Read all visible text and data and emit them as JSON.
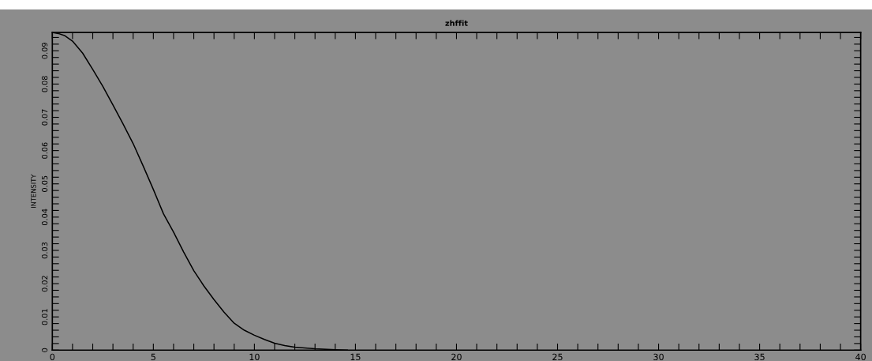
{
  "chart_data": {
    "type": "line",
    "title": "zhffit",
    "ylabel": "INTENSITY",
    "x": [
      0,
      0.3,
      0.6,
      1,
      1.5,
      2,
      2.5,
      3,
      3.5,
      4,
      4.5,
      5,
      5.5,
      6,
      6.5,
      7,
      7.5,
      8,
      8.5,
      9,
      9.5,
      10,
      10.5,
      11,
      11.5,
      12,
      13,
      14,
      14.6
    ],
    "series": [
      {
        "color": "#000000",
        "values": [
          0.0955,
          0.0952,
          0.0946,
          0.0929,
          0.0893,
          0.0844,
          0.0793,
          0.0737,
          0.068,
          0.0621,
          0.0553,
          0.0483,
          0.041,
          0.0355,
          0.0295,
          0.0239,
          0.0193,
          0.0152,
          0.0114,
          0.0081,
          0.006,
          0.0045,
          0.0032,
          0.0021,
          0.0014,
          0.0009,
          0.0004,
          0.0001,
          0
        ]
      }
    ],
    "xlim": [
      0,
      40
    ],
    "ylim": [
      0,
      0.0955
    ],
    "xticks": [
      0,
      {
        "value": 1,
        "label": null
      },
      {
        "value": 2,
        "label": null
      },
      {
        "value": 3,
        "label": null
      },
      {
        "value": 4,
        "label": null
      },
      5,
      {
        "value": 6,
        "label": null
      },
      {
        "value": 7,
        "label": null
      },
      {
        "value": 8,
        "label": null
      },
      {
        "value": 9,
        "label": null
      },
      10,
      {
        "value": 11,
        "label": null
      },
      {
        "value": 12,
        "label": null
      },
      {
        "value": 13,
        "label": null
      },
      {
        "value": 14,
        "label": null
      },
      15,
      {
        "value": 16,
        "label": null
      },
      {
        "value": 17,
        "label": null
      },
      {
        "value": 18,
        "label": null
      },
      {
        "value": 19,
        "label": null
      },
      20,
      {
        "value": 21,
        "label": null
      },
      {
        "value": 22,
        "label": null
      },
      {
        "value": 23,
        "label": null
      },
      {
        "value": 24,
        "label": null
      },
      25,
      {
        "value": 26,
        "label": null
      },
      {
        "value": 27,
        "label": null
      },
      {
        "value": 28,
        "label": null
      },
      {
        "value": 29,
        "label": null
      },
      30,
      {
        "value": 31,
        "label": null
      },
      {
        "value": 32,
        "label": null
      },
      {
        "value": 33,
        "label": null
      },
      {
        "value": 34,
        "label": null
      },
      35,
      {
        "value": 36,
        "label": null
      },
      {
        "value": 37,
        "label": null
      },
      {
        "value": 38,
        "label": null
      },
      {
        "value": 39,
        "label": null
      },
      40
    ],
    "yticks": [
      0,
      {
        "value": 0.002,
        "label": null
      },
      {
        "value": 0.004,
        "label": null
      },
      {
        "value": 0.006,
        "label": null
      },
      {
        "value": 0.008,
        "label": null
      },
      0.01,
      {
        "value": 0.012,
        "label": null
      },
      {
        "value": 0.014,
        "label": null
      },
      {
        "value": 0.016,
        "label": null
      },
      {
        "value": 0.018,
        "label": null
      },
      0.02,
      {
        "value": 0.022,
        "label": null
      },
      {
        "value": 0.024,
        "label": null
      },
      {
        "value": 0.026,
        "label": null
      },
      {
        "value": 0.028,
        "label": null
      },
      0.03,
      {
        "value": 0.032,
        "label": null
      },
      {
        "value": 0.034,
        "label": null
      },
      {
        "value": 0.036,
        "label": null
      },
      {
        "value": 0.038,
        "label": null
      },
      0.04,
      {
        "value": 0.042,
        "label": null
      },
      {
        "value": 0.044,
        "label": null
      },
      {
        "value": 0.046,
        "label": null
      },
      {
        "value": 0.048,
        "label": null
      },
      0.05,
      {
        "value": 0.052,
        "label": null
      },
      {
        "value": 0.054,
        "label": null
      },
      {
        "value": 0.056,
        "label": null
      },
      {
        "value": 0.058,
        "label": null
      },
      0.06,
      {
        "value": 0.062,
        "label": null
      },
      {
        "value": 0.064,
        "label": null
      },
      {
        "value": 0.066,
        "label": null
      },
      {
        "value": 0.068,
        "label": null
      },
      0.07,
      {
        "value": 0.072,
        "label": null
      },
      {
        "value": 0.074,
        "label": null
      },
      {
        "value": 0.076,
        "label": null
      },
      {
        "value": 0.078,
        "label": null
      },
      0.08,
      {
        "value": 0.082,
        "label": null
      },
      {
        "value": 0.084,
        "label": null
      },
      {
        "value": 0.086,
        "label": null
      },
      {
        "value": 0.088,
        "label": null
      },
      0.09,
      {
        "value": 0.092,
        "label": null
      },
      {
        "value": 0.094,
        "label": null
      }
    ],
    "grid": false,
    "legend": false,
    "marker": "none",
    "line_style": "solid"
  }
}
